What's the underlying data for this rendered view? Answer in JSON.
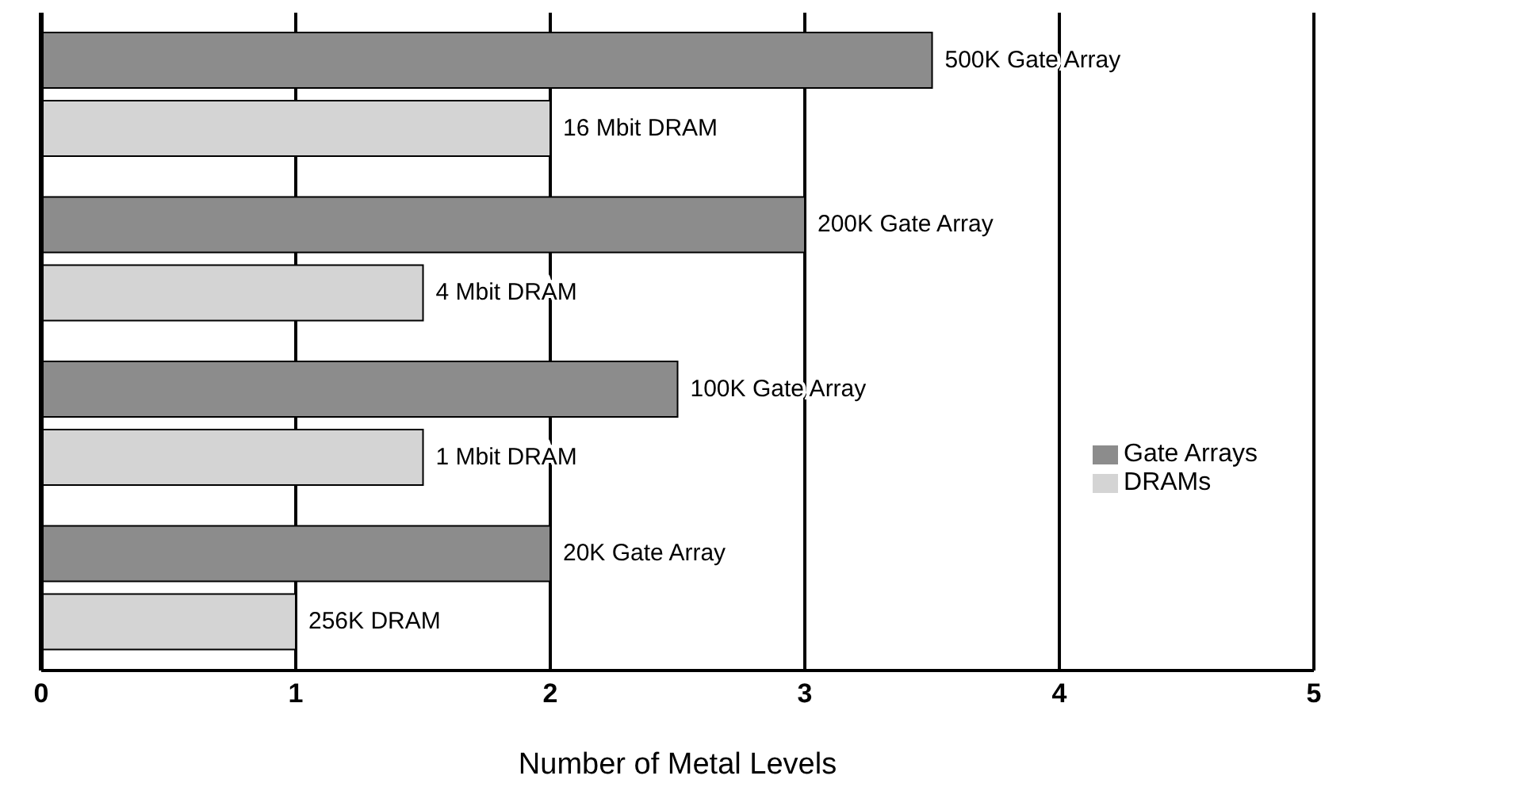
{
  "chart_data": {
    "type": "bar",
    "orientation": "horizontal",
    "xlabel": "Number of Metal Levels",
    "categories": [
      null,
      null,
      null,
      null
    ],
    "series": [
      {
        "name": "Gate Arrays",
        "color": "#8c8c8c",
        "values": [
          3.5,
          3,
          2.5,
          2
        ]
      },
      {
        "name": "DRAMs",
        "color": "#d4d4d4",
        "values": [
          2,
          1.5,
          1.5,
          1
        ]
      }
    ],
    "annotations": [
      "500K Gate Array",
      "16 Mbit DRAM",
      "200K Gate Array",
      "4 Mbit DRAM",
      "100K Gate Array",
      "1 Mbit DRAM",
      "20K Gate Array",
      "256K DRAM"
    ],
    "xlim": [
      0,
      5
    ],
    "xticks": [
      0,
      1,
      2,
      3,
      4,
      5
    ],
    "grid": "x",
    "legend": "right",
    "tick_labels": "x"
  }
}
